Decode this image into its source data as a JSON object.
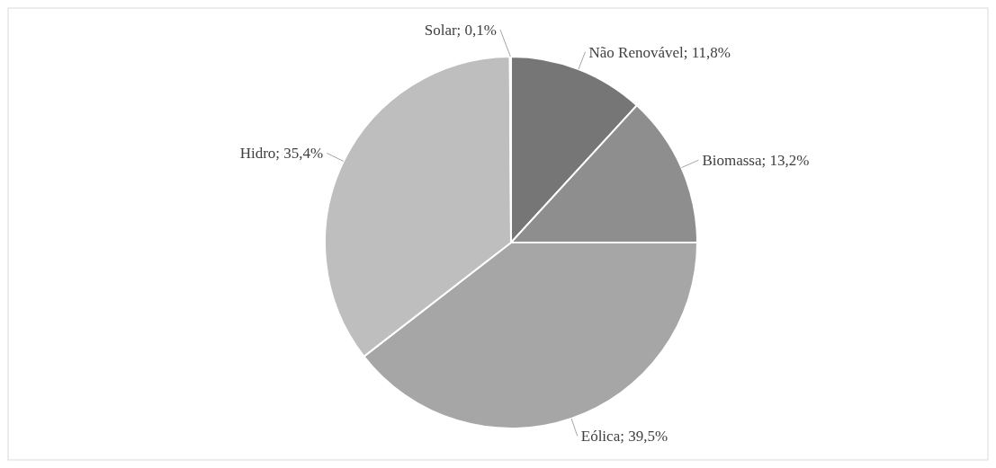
{
  "chart_data": {
    "type": "pie",
    "categories": [
      "Não Renovável",
      "Biomassa",
      "Eólica",
      "Hidro",
      "Solar"
    ],
    "values": [
      11.8,
      13.2,
      39.5,
      35.4,
      0.1
    ],
    "value_labels": [
      "11,8%",
      "13,2%",
      "39,5%",
      "35,4%",
      "0,1%"
    ],
    "colors": [
      "#767676",
      "#8e8e8e",
      "#a6a6a6",
      "#bebebe",
      "#d0d0d0"
    ]
  }
}
